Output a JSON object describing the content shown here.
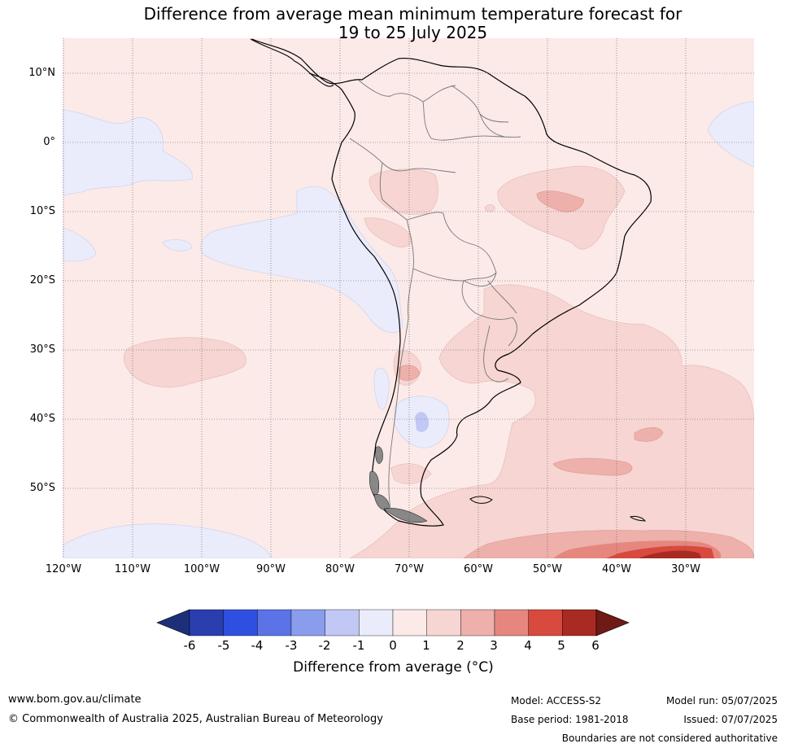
{
  "title_line1": "Difference from average mean minimum temperature forecast for",
  "title_line2": "19 to 25 July 2025",
  "lat_labels": [
    "10°N",
    "0°",
    "10°S",
    "20°S",
    "30°S",
    "40°S",
    "50°S"
  ],
  "lon_labels": [
    "120°W",
    "110°W",
    "100°W",
    "90°W",
    "80°W",
    "70°W",
    "60°W",
    "50°W",
    "40°W",
    "30°W"
  ],
  "colorbar": {
    "ticks": [
      "-6",
      "-5",
      "-4",
      "-3",
      "-2",
      "-1",
      "0",
      "1",
      "2",
      "3",
      "4",
      "5",
      "6"
    ],
    "colors": [
      "#2a3eb0",
      "#2f4fe0",
      "#5b73e6",
      "#8a9ded",
      "#c1c8f5",
      "#eaecfb",
      "#fbeae8",
      "#f6d5d2",
      "#eeb0ab",
      "#e6877f",
      "#d84a3e",
      "#a82a22"
    ],
    "under_color": "#1e2f7a",
    "over_color": "#701a16",
    "label": "Difference from average (°C)"
  },
  "footer": {
    "website": "www.bom.gov.au/climate",
    "copyright": "© Commonwealth of Australia 2025, Australian Bureau of Meteorology",
    "model": "Model: ACCESS-S2",
    "base_period": "Base period: 1981-2018",
    "model_run": "Model run: 05/07/2025",
    "issued": "Issued: 07/07/2025",
    "disclaimer": "Boundaries are not considered authoritative"
  }
}
